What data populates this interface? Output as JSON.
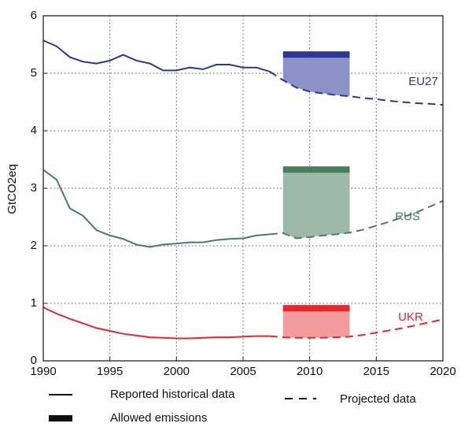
{
  "chart_data": {
    "type": "line",
    "y_label": "GtCO2eq",
    "xlim": [
      1990,
      2020
    ],
    "xticks": [
      1990,
      1995,
      2000,
      2005,
      2010,
      2015,
      2020
    ],
    "ylim": [
      0,
      6
    ],
    "yticks": [
      0,
      1,
      2,
      3,
      4,
      5,
      6
    ],
    "grid": true,
    "historical_x": [
      1990,
      1991,
      1992,
      1993,
      1994,
      1995,
      1996,
      1997,
      1998,
      1999,
      2000,
      2001,
      2002,
      2003,
      2004,
      2005,
      2006,
      2007
    ],
    "projected_x": [
      2007,
      2008,
      2009,
      2010,
      2011,
      2012,
      2013,
      2014,
      2015,
      2016,
      2017,
      2018,
      2019,
      2020
    ],
    "allowed_period": [
      2008,
      2013
    ],
    "legend": {
      "historical": "Reported historical data",
      "projected": "Projected data",
      "allowed": "Allowed emissions"
    },
    "series": [
      {
        "name": "EU27",
        "color": "#2b3795",
        "area_color": "#8b92c8",
        "historical": [
          5.57,
          5.47,
          5.28,
          5.2,
          5.17,
          5.22,
          5.32,
          5.22,
          5.17,
          5.05,
          5.05,
          5.1,
          5.07,
          5.15,
          5.15,
          5.1,
          5.1,
          5.03
        ],
        "projected": [
          5.03,
          4.88,
          4.75,
          4.68,
          4.65,
          4.62,
          4.6,
          4.57,
          4.55,
          4.52,
          4.5,
          4.48,
          4.47,
          4.45
        ],
        "allowed": 5.38
      },
      {
        "name": "RUS",
        "color": "#4a7d5e",
        "area_color": "#9dbaa8",
        "historical": [
          3.32,
          3.15,
          2.65,
          2.52,
          2.27,
          2.18,
          2.12,
          2.02,
          1.98,
          2.02,
          2.04,
          2.06,
          2.06,
          2.1,
          2.12,
          2.13,
          2.18,
          2.2
        ],
        "projected": [
          2.2,
          2.22,
          2.13,
          2.15,
          2.18,
          2.2,
          2.23,
          2.28,
          2.35,
          2.42,
          2.5,
          2.58,
          2.68,
          2.78
        ],
        "allowed": 3.38
      },
      {
        "name": "UKR",
        "color": "#e8262c",
        "area_color": "#f29a9c",
        "historical": [
          0.93,
          0.82,
          0.73,
          0.65,
          0.57,
          0.52,
          0.47,
          0.44,
          0.41,
          0.4,
          0.39,
          0.39,
          0.4,
          0.41,
          0.41,
          0.42,
          0.43,
          0.43
        ],
        "projected": [
          0.43,
          0.41,
          0.4,
          0.4,
          0.4,
          0.41,
          0.42,
          0.45,
          0.49,
          0.53,
          0.57,
          0.62,
          0.67,
          0.72
        ],
        "allowed": 0.97
      }
    ]
  }
}
